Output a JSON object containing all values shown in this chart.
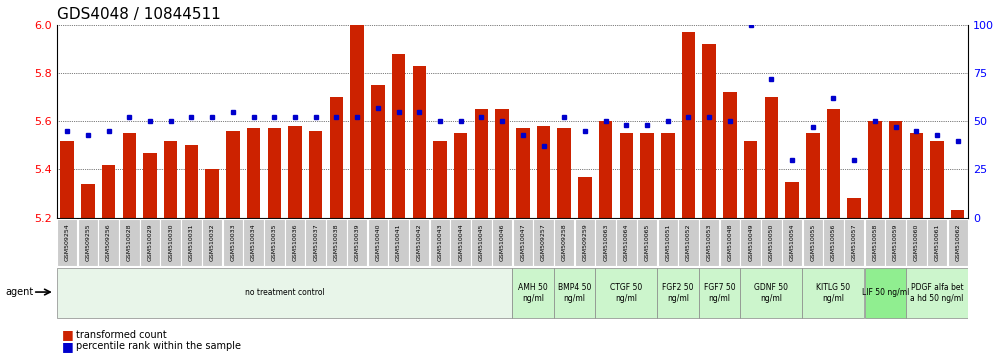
{
  "title": "GDS4048 / 10844511",
  "samples": [
    "GSM509254",
    "GSM509255",
    "GSM509256",
    "GSM510028",
    "GSM510029",
    "GSM510030",
    "GSM510031",
    "GSM510032",
    "GSM510033",
    "GSM510034",
    "GSM510035",
    "GSM510036",
    "GSM510037",
    "GSM510038",
    "GSM510039",
    "GSM510040",
    "GSM510041",
    "GSM510042",
    "GSM510043",
    "GSM510044",
    "GSM510045",
    "GSM510046",
    "GSM510047",
    "GSM509257",
    "GSM509258",
    "GSM509259",
    "GSM510063",
    "GSM510064",
    "GSM510065",
    "GSM510051",
    "GSM510052",
    "GSM510053",
    "GSM510048",
    "GSM510049",
    "GSM510050",
    "GSM510054",
    "GSM510055",
    "GSM510056",
    "GSM510057",
    "GSM510058",
    "GSM510059",
    "GSM510060",
    "GSM510061",
    "GSM510062"
  ],
  "bar_values": [
    5.52,
    5.34,
    5.42,
    5.55,
    5.47,
    5.52,
    5.5,
    5.4,
    5.56,
    5.57,
    5.57,
    5.58,
    5.56,
    5.7,
    6.0,
    5.75,
    5.88,
    5.83,
    5.52,
    5.55,
    5.65,
    5.65,
    5.57,
    5.58,
    5.57,
    5.37,
    5.6,
    5.55,
    5.55,
    5.55,
    5.97,
    5.92,
    5.72,
    5.52,
    5.7,
    5.35,
    5.55,
    5.65,
    5.28,
    5.6,
    5.6,
    5.55,
    5.52,
    5.23
  ],
  "percentile_values": [
    45,
    43,
    45,
    52,
    50,
    50,
    52,
    52,
    55,
    52,
    52,
    52,
    52,
    52,
    52,
    57,
    55,
    55,
    50,
    50,
    52,
    50,
    43,
    37,
    52,
    45,
    50,
    48,
    48,
    50,
    52,
    52,
    50,
    100,
    72,
    30,
    47,
    62,
    30,
    50,
    47,
    45,
    43,
    40
  ],
  "agent_groups": [
    {
      "label": "no treatment control",
      "start": 0,
      "end": 21,
      "color": "#e8f5e9"
    },
    {
      "label": "AMH 50\nng/ml",
      "start": 22,
      "end": 23,
      "color": "#ccf5cc"
    },
    {
      "label": "BMP4 50\nng/ml",
      "start": 24,
      "end": 25,
      "color": "#ccf5cc"
    },
    {
      "label": "CTGF 50\nng/ml",
      "start": 26,
      "end": 28,
      "color": "#ccf5cc"
    },
    {
      "label": "FGF2 50\nng/ml",
      "start": 29,
      "end": 30,
      "color": "#ccf5cc"
    },
    {
      "label": "FGF7 50\nng/ml",
      "start": 31,
      "end": 32,
      "color": "#ccf5cc"
    },
    {
      "label": "GDNF 50\nng/ml",
      "start": 33,
      "end": 35,
      "color": "#ccf5cc"
    },
    {
      "label": "KITLG 50\nng/ml",
      "start": 36,
      "end": 38,
      "color": "#ccf5cc"
    },
    {
      "label": "LIF 50 ng/ml",
      "start": 39,
      "end": 40,
      "color": "#90ee90"
    },
    {
      "label": "PDGF alfa bet\na hd 50 ng/ml",
      "start": 41,
      "end": 43,
      "color": "#ccf5cc"
    }
  ],
  "ylim": [
    5.2,
    6.0
  ],
  "y_ticks": [
    5.2,
    5.4,
    5.6,
    5.8,
    6.0
  ],
  "right_yticks": [
    0,
    25,
    50,
    75,
    100
  ],
  "bar_color": "#cc2200",
  "dot_color": "#0000cc",
  "tick_label_bg": "#cccccc",
  "title_fontsize": 11,
  "axis_fontsize": 8
}
